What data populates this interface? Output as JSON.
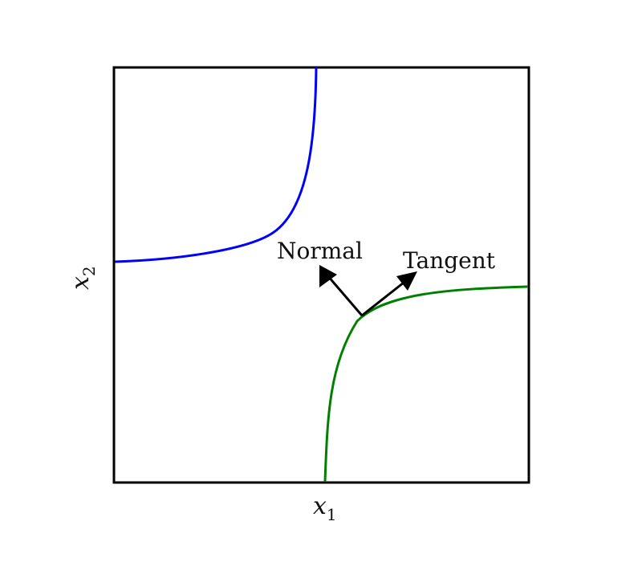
{
  "axes": {
    "x_label": "x",
    "x_sub": "1",
    "y_label": "x",
    "y_sub": "2"
  },
  "annotations": {
    "normal": "Normal",
    "tangent": "Tangent"
  },
  "colors": {
    "frame": "#000000",
    "curve_upper": "#0000ff",
    "curve_lower": "#008000",
    "arrow": "#000000"
  },
  "diagram": {
    "type": "level-curves",
    "curves": [
      "upper",
      "lower"
    ]
  }
}
